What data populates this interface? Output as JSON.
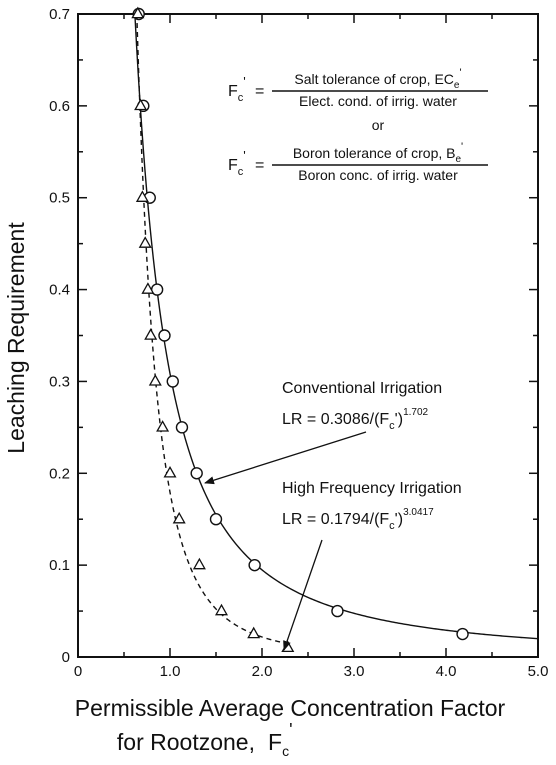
{
  "chart_data": {
    "type": "line",
    "title": "",
    "xlabel_line1": "Permissible Average Concentration Factor",
    "xlabel_line2": "for Rootzone,",
    "xlabel_symbol": "F",
    "xlabel_sub": "c",
    "xlabel_prime": "'",
    "ylabel": "Leaching Requirement",
    "xlim": [
      0,
      5.0
    ],
    "ylim": [
      0,
      0.7
    ],
    "xticks": [
      "0",
      "1.0",
      "2.0",
      "3.0",
      "4.0",
      "5.0"
    ],
    "yticks": [
      "0",
      "0.1",
      "0.2",
      "0.3",
      "0.4",
      "0.5",
      "0.6",
      "0.7"
    ],
    "series": [
      {
        "name": "Conventional Irrigation",
        "equation_prefix": "LR = 0.3086/(F",
        "equation_sub": "c",
        "equation_suffix": "')",
        "equation_exp": "1.702",
        "coef": 0.3086,
        "exponent": 1.702,
        "line_style": "solid",
        "marker": "circle",
        "points": [
          [
            0.66,
            0.7
          ],
          [
            0.71,
            0.6
          ],
          [
            0.78,
            0.5
          ],
          [
            0.86,
            0.4
          ],
          [
            0.94,
            0.35
          ],
          [
            1.03,
            0.3
          ],
          [
            1.13,
            0.25
          ],
          [
            1.29,
            0.2
          ],
          [
            1.5,
            0.15
          ],
          [
            1.92,
            0.1
          ],
          [
            2.82,
            0.05
          ],
          [
            4.18,
            0.025
          ]
        ]
      },
      {
        "name": "High Frequency Irrigation",
        "equation_prefix": "LR = 0.1794/(F",
        "equation_sub": "c",
        "equation_suffix": "')",
        "equation_exp": "3.0417",
        "coef": 0.1794,
        "exponent": 3.0417,
        "line_style": "dashed",
        "marker": "triangle",
        "points": [
          [
            0.65,
            0.7
          ],
          [
            0.68,
            0.6
          ],
          [
            0.7,
            0.5
          ],
          [
            0.73,
            0.45
          ],
          [
            0.76,
            0.4
          ],
          [
            0.79,
            0.35
          ],
          [
            0.84,
            0.3
          ],
          [
            0.92,
            0.25
          ],
          [
            1.0,
            0.2
          ],
          [
            1.1,
            0.15
          ],
          [
            1.32,
            0.1
          ],
          [
            1.56,
            0.05
          ],
          [
            1.91,
            0.025
          ],
          [
            2.28,
            0.01
          ]
        ]
      }
    ],
    "formula_box": {
      "lhs_symbol": "F",
      "lhs_sub": "c",
      "lhs_prime": "'",
      "eq": "=",
      "salt_num": "Salt tolerance of crop, EC",
      "salt_num_sub": "e",
      "salt_num_prime": "'",
      "salt_den": "Elect. cond. of irrig. water",
      "or": "or",
      "boron_num": "Boron tolerance of crop, B",
      "boron_num_sub": "e",
      "boron_num_prime": "'",
      "boron_den": "Boron conc. of irrig. water"
    },
    "grid": false,
    "legend": "none"
  }
}
